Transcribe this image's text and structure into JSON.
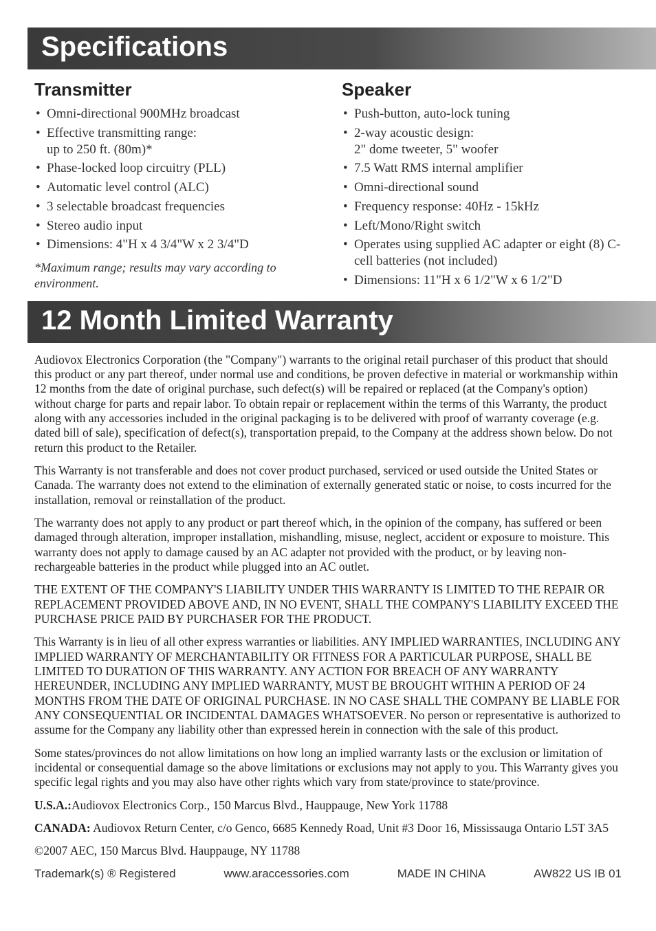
{
  "specs": {
    "banner": "Specifications",
    "transmitter": {
      "heading": "Transmitter",
      "items": [
        "Omni-directional 900MHz broadcast",
        "Effective transmitting range:\nup to 250 ft. (80m)*",
        "Phase-locked loop circuitry (PLL)",
        "Automatic level control (ALC)",
        "3 selectable broadcast frequencies",
        "Stereo audio input",
        "Dimensions: 4\"H x 4 3/4\"W x 2 3/4\"D"
      ],
      "footnote": "*Maximum range; results may vary according to environment."
    },
    "speaker": {
      "heading": "Speaker",
      "items": [
        "Push-button, auto-lock tuning",
        "2-way acoustic design:\n2\" dome tweeter, 5\" woofer",
        "7.5 Watt RMS internal amplifier",
        "Omni-directional sound",
        "Frequency response: 40Hz - 15kHz",
        "Left/Mono/Right switch",
        "Operates using supplied AC adapter or eight (8) C-cell batteries (not included)",
        "Dimensions: 11\"H x 6 1/2\"W x 6 1/2\"D"
      ]
    }
  },
  "warranty": {
    "banner": "12 Month Limited Warranty",
    "paragraphs": [
      "Audiovox Electronics Corporation (the \"Company\") warrants to the original retail purchaser of this product that should this product or any part thereof, under normal use and conditions, be proven defective in material or workmanship within 12 months from the date of original purchase, such defect(s) will be repaired or replaced (at the Company's option) without charge for parts and repair labor. To obtain repair or replacement within the terms of this Warranty, the product along with any accessories included in the original packaging is to be delivered with proof of warranty coverage (e.g. dated bill of sale), specification of defect(s), transportation prepaid, to the Company at the address shown below. Do not return this product to the Retailer.",
      "This Warranty is not transferable and does not cover product purchased, serviced or used outside the United States or Canada. The warranty does not extend to the elimination of externally generated static or noise, to costs incurred for the installation, removal or reinstallation of the product.",
      "The warranty does not apply to any product or part thereof which, in the opinion of the company, has suffered or been damaged through alteration, improper installation, mishandling, misuse, neglect, accident or exposure to moisture. This warranty does not apply to damage caused by an AC adapter not provided with the product, or by leaving non-rechargeable batteries in the product while plugged into an AC outlet.",
      "THE EXTENT OF THE COMPANY'S LIABILITY UNDER THIS WARRANTY IS LIMITED TO THE REPAIR OR REPLACEMENT PROVIDED ABOVE AND, IN NO EVENT, SHALL THE COMPANY'S LIABILITY EXCEED THE PURCHASE PRICE PAID BY PURCHASER FOR THE PRODUCT.",
      "This Warranty is in lieu of all other express warranties or liabilities. ANY IMPLIED WARRANTIES, INCLUDING ANY IMPLIED WARRANTY OF MERCHANTABILITY OR FITNESS FOR A PARTICULAR PURPOSE, SHALL BE LIMITED TO DURATION OF THIS WARRANTY. ANY ACTION FOR BREACH OF ANY WARRANTY HEREUNDER, INCLUDING ANY IMPLIED WARRANTY, MUST BE BROUGHT WITHIN A PERIOD OF 24 MONTHS FROM THE DATE OF ORIGINAL PURCHASE.  IN NO CASE SHALL THE COMPANY BE LIABLE FOR ANY CONSEQUENTIAL OR INCIDENTAL DAMAGES WHATSOEVER. No person or representative is authorized to assume for the Company any liability other than expressed herein in connection with the sale of this product.",
      "Some states/provinces do not allow limitations on how long an implied warranty lasts or the exclusion or limitation of incidental or consequential damage so the above limitations or exclusions may not apply to you. This Warranty gives you specific legal rights and you may also have other rights which vary from state/province to state/province."
    ],
    "addresses": {
      "usa_label": "U.S.A.:",
      "usa_value": "Audiovox Electronics Corp., 150 Marcus Blvd., Hauppauge, New York 11788",
      "canada_label": "CANADA:",
      "canada_value": "Audiovox Return Center, c/o Genco, 6685 Kennedy Road, Unit #3 Door 16, Mississauga Ontario L5T 3A5"
    },
    "copyright": "©2007 AEC, 150 Marcus Blvd. Hauppauge, NY 11788",
    "footer": {
      "trademark": "Trademark(s) ® Registered",
      "url": "www.araccessories.com",
      "made": "MADE IN CHINA",
      "code": "AW822 US IB 01"
    }
  }
}
